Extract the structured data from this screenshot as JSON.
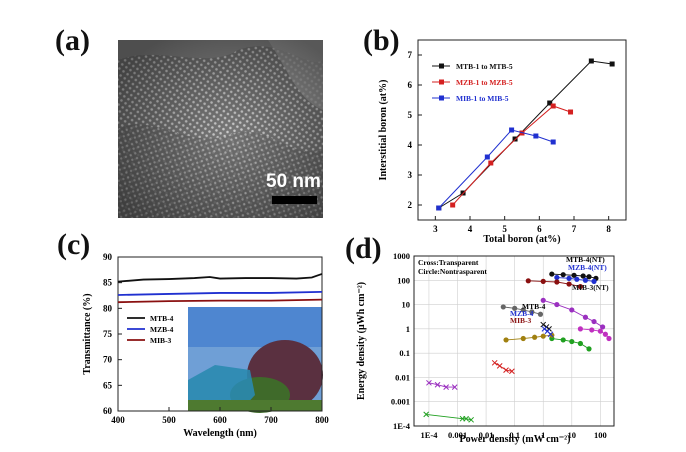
{
  "panels": {
    "a": "(a)",
    "b": "(b)",
    "c": "(c)",
    "d": "(d)"
  },
  "tem": {
    "scale_label": "50 nm"
  },
  "colors": {
    "black": "#111111",
    "red": "#d42020",
    "blue": "#2030d0",
    "darkred": "#8a1010"
  },
  "chart_data": [
    {
      "type": "line",
      "title": "",
      "xlabel": "Total boron (at%)",
      "ylabel": "Interstitial boron (at%)",
      "xlim": [
        2.5,
        8.5
      ],
      "ylim": [
        1.5,
        7.5
      ],
      "xticks": [
        3,
        4,
        5,
        6,
        7,
        8
      ],
      "yticks": [
        2,
        3,
        4,
        5,
        6,
        7
      ],
      "legend_position": "top-left",
      "series": [
        {
          "name": "MTB-1 to MTB-5",
          "color": "#111111",
          "x": [
            3.1,
            3.8,
            5.3,
            6.3,
            7.5,
            8.1
          ],
          "y": [
            1.9,
            2.4,
            4.2,
            5.4,
            6.8,
            6.7
          ]
        },
        {
          "name": "MZB-1 to MZB-5",
          "color": "#d42020",
          "x": [
            3.5,
            4.6,
            5.5,
            6.4,
            6.9
          ],
          "y": [
            2.0,
            3.4,
            4.4,
            5.3,
            5.1
          ]
        },
        {
          "name": "MIB-1 to MIB-5",
          "color": "#2030d0",
          "x": [
            3.1,
            4.5,
            5.2,
            5.9,
            6.4
          ],
          "y": [
            1.9,
            3.6,
            4.5,
            4.3,
            4.1
          ]
        }
      ]
    },
    {
      "type": "line",
      "title": "",
      "xlabel": "Wavelength (nm)",
      "ylabel": "Transmittance (%)",
      "xlim": [
        400,
        800
      ],
      "ylim": [
        60,
        90
      ],
      "xticks": [
        400,
        500,
        600,
        700,
        800
      ],
      "yticks": [
        60,
        65,
        70,
        75,
        80,
        85,
        90
      ],
      "legend_position": "middle-left",
      "series": [
        {
          "name": "MTB-4",
          "color": "#111111",
          "x": [
            400,
            450,
            500,
            550,
            580,
            600,
            650,
            700,
            750,
            780,
            800
          ],
          "y": [
            85.2,
            85.6,
            85.7,
            85.9,
            86.1,
            85.8,
            85.9,
            85.9,
            85.8,
            86.0,
            86.7
          ]
        },
        {
          "name": "MZB-4",
          "color": "#2030d0",
          "x": [
            400,
            500,
            600,
            700,
            800
          ],
          "y": [
            82.6,
            82.8,
            83.0,
            83.0,
            83.2
          ]
        },
        {
          "name": "MIB-3",
          "color": "#8a1010",
          "x": [
            400,
            500,
            600,
            700,
            800
          ],
          "y": [
            81.2,
            81.4,
            81.5,
            81.5,
            81.7
          ]
        }
      ]
    },
    {
      "type": "scatter",
      "title": "",
      "xlabel": "Power density (mW cm⁻²)",
      "ylabel": "Energy density (μWh cm⁻²)",
      "xscale": "log",
      "yscale": "log",
      "xlim": [
        3e-05,
        300
      ],
      "ylim": [
        0.0001,
        1000
      ],
      "xtick_labels": [
        "1E-4",
        "0.001",
        "0.01",
        "0.1",
        "1",
        "10",
        "100"
      ],
      "ytick_labels": [
        "1E-4",
        "0.001",
        "0.01",
        "0.1",
        "1",
        "10",
        "100",
        "1000"
      ],
      "legend": [
        "Cross:Transparent",
        "Circle:Nontrasparent"
      ],
      "annotations": [
        "MTB-4(NT)",
        "MZB-4(NT)",
        "MIB-3(NT)",
        "MTB-4",
        "MZB-4",
        "MIB-3"
      ],
      "series": [
        {
          "name": "MTB-4(NT)",
          "color": "#111111",
          "marker": "circle",
          "x": [
            2,
            5,
            12,
            25,
            40,
            70
          ],
          "y": [
            180,
            170,
            160,
            150,
            140,
            120
          ]
        },
        {
          "name": "MZB-4(NT)",
          "color": "#2030d0",
          "marker": "circle",
          "x": [
            3,
            8,
            15,
            30,
            60
          ],
          "y": [
            130,
            120,
            110,
            100,
            90
          ]
        },
        {
          "name": "MIB-3(NT)",
          "color": "#8a1010",
          "marker": "circle",
          "x": [
            0.3,
            1,
            3,
            8,
            20
          ],
          "y": [
            95,
            90,
            85,
            70,
            55
          ]
        },
        {
          "name": "purple",
          "color": "#9b30c0",
          "marker": "circle",
          "x": [
            1,
            3,
            10,
            30,
            60,
            120
          ],
          "y": [
            15,
            10,
            6,
            3,
            2,
            1.2
          ]
        },
        {
          "name": "magenta",
          "color": "#c030c0",
          "marker": "circle",
          "x": [
            20,
            50,
            100,
            150,
            200
          ],
          "y": [
            1,
            0.9,
            0.8,
            0.6,
            0.4
          ]
        },
        {
          "name": "gray",
          "color": "#666666",
          "marker": "circle",
          "x": [
            0.04,
            0.1,
            0.2,
            0.4,
            0.8
          ],
          "y": [
            8,
            7,
            6,
            5,
            4
          ]
        },
        {
          "name": "green",
          "color": "#20a020",
          "marker": "circle",
          "x": [
            2,
            5,
            10,
            20,
            40
          ],
          "y": [
            0.4,
            0.35,
            0.3,
            0.25,
            0.15
          ]
        },
        {
          "name": "olive",
          "color": "#a08010",
          "marker": "circle",
          "x": [
            0.05,
            0.2,
            0.5,
            1,
            2
          ],
          "y": [
            0.35,
            0.4,
            0.45,
            0.5,
            0.55
          ]
        },
        {
          "name": "MTB-4",
          "color": "#111111",
          "marker": "cross",
          "x": [
            1,
            1.3,
            1.6
          ],
          "y": [
            1.5,
            1.2,
            1.0
          ]
        },
        {
          "name": "MZB-4",
          "color": "#2030d0",
          "marker": "cross",
          "x": [
            1.1,
            1.4,
            1.8
          ],
          "y": [
            1.0,
            0.8,
            0.6
          ]
        },
        {
          "name": "red cross",
          "color": "#d42020",
          "marker": "cross",
          "x": [
            0.02,
            0.03,
            0.05,
            0.08
          ],
          "y": [
            0.04,
            0.03,
            0.02,
            0.018
          ]
        },
        {
          "name": "purple cross",
          "color": "#9b30c0",
          "marker": "cross",
          "x": [
            0.0001,
            0.0002,
            0.0004,
            0.0008
          ],
          "y": [
            0.006,
            0.005,
            0.004,
            0.004
          ]
        },
        {
          "name": "green cross",
          "color": "#20a020",
          "marker": "cross",
          "x": [
            8e-05,
            0.0015,
            0.002,
            0.003
          ],
          "y": [
            0.0003,
            0.0002,
            0.0002,
            0.00018
          ]
        }
      ]
    }
  ]
}
